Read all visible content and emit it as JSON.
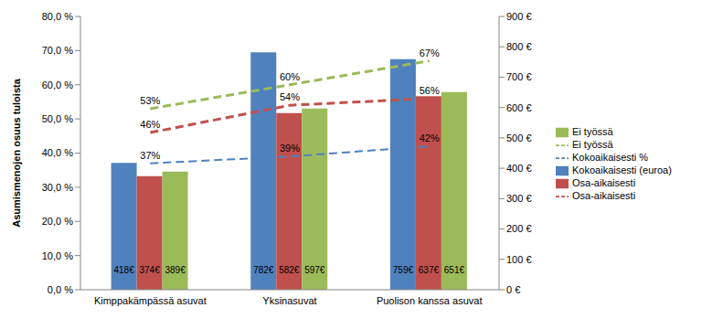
{
  "chart_data": {
    "type": "bar",
    "categories": [
      "Kimppakämpässä asuvat",
      "Yksinasuvat",
      "Puolison kanssa asuvat"
    ],
    "ylabel": "Asumismenojen osuus tuloista",
    "ylim": [
      0,
      80
    ],
    "yticks": [
      {
        "value": 0,
        "label": "0,0 %"
      },
      {
        "value": 10,
        "label": "10,0 %"
      },
      {
        "value": 20,
        "label": "20,0 %"
      },
      {
        "value": 30,
        "label": "30,0 %"
      },
      {
        "value": 40,
        "label": "40,0 %"
      },
      {
        "value": 50,
        "label": "50,0 %"
      },
      {
        "value": 60,
        "label": "60,0 %"
      },
      {
        "value": 70,
        "label": "70,0 %"
      },
      {
        "value": 80,
        "label": "80,0 %"
      }
    ],
    "y2lim": [
      0,
      900
    ],
    "y2ticks": [
      {
        "value": 0,
        "label": "0 €"
      },
      {
        "value": 100,
        "label": "100 €"
      },
      {
        "value": 200,
        "label": "200 €"
      },
      {
        "value": 300,
        "label": "300 €"
      },
      {
        "value": 400,
        "label": "400 €"
      },
      {
        "value": 500,
        "label": "500 €"
      },
      {
        "value": 600,
        "label": "600 €"
      },
      {
        "value": 700,
        "label": "700 €"
      },
      {
        "value": 800,
        "label": "800 €"
      },
      {
        "value": 900,
        "label": "900 €"
      }
    ],
    "grid": false,
    "legend": "right",
    "data_labels": true,
    "series": [
      {
        "name": "Kokoaikaisesti (euroa)",
        "type": "bar",
        "axis": "y2",
        "color": "#4f81bd",
        "values": [
          418,
          782,
          759
        ],
        "value_labels": [
          "418€",
          "782€",
          "759€"
        ]
      },
      {
        "name": "Osa-aikaisesti",
        "type": "bar",
        "axis": "y2",
        "color": "#c0504d",
        "values": [
          374,
          582,
          637
        ],
        "value_labels": [
          "374€",
          "582€",
          "637€"
        ]
      },
      {
        "name": "Ei työssä",
        "type": "bar",
        "axis": "y2",
        "color": "#9bbb59",
        "values": [
          389,
          597,
          651
        ],
        "value_labels": [
          "389€",
          "597€",
          "651€"
        ]
      },
      {
        "name": "Kokoaikaisesti %",
        "type": "line",
        "line_style": "dashed",
        "color": "#4f81bd",
        "values": [
          37,
          39,
          42
        ],
        "value_labels": [
          "37%",
          "39%",
          "42%"
        ]
      },
      {
        "name": "Osa-aikaisesti",
        "type": "line",
        "line_style": "dashed",
        "color": "#c0504d",
        "values": [
          46,
          54,
          56
        ],
        "value_labels": [
          "46%",
          "54%",
          "56%"
        ]
      },
      {
        "name": "Ei työssä",
        "type": "line",
        "line_style": "dashed",
        "color": "#9bbb59",
        "values": [
          53,
          60,
          67
        ],
        "value_labels": [
          "53%",
          "60%",
          "67%"
        ]
      }
    ]
  }
}
